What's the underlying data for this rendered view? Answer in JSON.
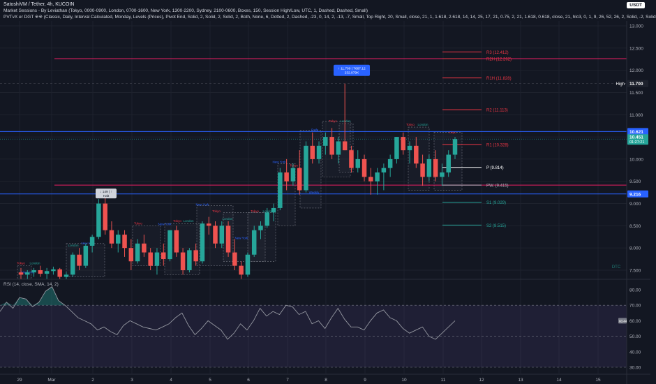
{
  "header": {
    "symbol_line": "SatoshiVM / Tether, 4h, KUCOIN",
    "indicator1": "Market Sessions - By Leviathan (Tokyo, 0000-0900, London, 0700-1600, New York, 1300-2200, Sydney, 2100-0600, Boxes, 150, Session High/Low, UTC, 1, Dashed, Dashed, Small)",
    "indicator2": "PVTvX er DGT ※※ (Classic, Daily, Interval Calculated, Monday, Levels (Prices), Pivot End, Solid, 2, Solid, 2, Solid, 2, Both, None, 6, Dotted, 2, Dashed, -23, 0, 14, 2, -13, -7, Small, Top Right, 20, Small, close, 21, 1, 1.618, 2.618, 14, 14, 25, 17, 21, 0.75, 2, 21, 1.618, 0.618, close, 21, hlc3, 0, 1, 9, 26, 52, 26, 2, Solid, -2, Solid",
    "currency": "USDT"
  },
  "rsi": {
    "label": "RSI (14, close, SMA, 14, 2)",
    "current": "60.44",
    "axis": [
      "80.00",
      "70.00",
      "60.00",
      "50.00",
      "40.00",
      "30.00"
    ],
    "upper": 70,
    "lower": 30,
    "mid": 50,
    "values": [
      66,
      72,
      68,
      75,
      74,
      69,
      72,
      79,
      82,
      73,
      70,
      66,
      62,
      60,
      58,
      54,
      56,
      53,
      51,
      57,
      60,
      58,
      56,
      55,
      54,
      56,
      58,
      62,
      65,
      57,
      51,
      55,
      60,
      57,
      54,
      48,
      52,
      58,
      54,
      60,
      68,
      63,
      66,
      64,
      70,
      69,
      64,
      66,
      58,
      60,
      55,
      62,
      68,
      61,
      56,
      56,
      54,
      60,
      65,
      67,
      62,
      60,
      55,
      52,
      54,
      56,
      50,
      48,
      52,
      56,
      60
    ]
  },
  "price_axis": {
    "ticks": [
      "13.000",
      "12.500",
      "12.000",
      "11.500",
      "11.000",
      "10.500",
      "10.000",
      "9.500",
      "9.000",
      "8.500",
      "8.000",
      "7.500"
    ],
    "high_label": "High",
    "high_value": "11.700",
    "level_10_621": "10.621",
    "current_price": "10.451",
    "countdown": "01:27:21",
    "level_9_216": "9.216"
  },
  "time_axis": [
    "29",
    "Mar",
    "2",
    "3",
    "4",
    "5",
    "6",
    "7",
    "8",
    "9",
    "10",
    "11",
    "12",
    "13",
    "14",
    "15"
  ],
  "pivots": [
    {
      "label": "R3 (12.412)",
      "price": 12.412,
      "color": "#f23645"
    },
    {
      "label": "R2H (12.262)",
      "price": 12.262,
      "color": "#f23645"
    },
    {
      "label": "R1H (11.828)",
      "price": 11.828,
      "color": "#f23645"
    },
    {
      "label": "R2 (11.113)",
      "price": 11.113,
      "color": "#f23645"
    },
    {
      "label": "R1 (10.328)",
      "price": 10.328,
      "color": "#f23645"
    },
    {
      "label": "P (9.814)",
      "price": 9.814,
      "color": "#ffffff"
    },
    {
      "label": "PW. (9.415)",
      "price": 9.415,
      "color": "#b2b5be"
    },
    {
      "label": "S1 (9.029)",
      "price": 9.029,
      "color": "#26a69a"
    },
    {
      "label": "S2 (8.515)",
      "price": 8.515,
      "color": "#26a69a"
    }
  ],
  "annotations": {
    "high_callout_line1": "↑ 11.700 | 7667.12",
    "high_callout_line2": "232.979K",
    "low_callout_line1": "↓ 149 | ↑",
    "low_callout_line2": "Halt",
    "watermark": "DTC",
    "session_labels": [
      {
        "text": "Tokyo",
        "color": "#f23645",
        "price": 7.6,
        "cx": 30
      },
      {
        "text": "London",
        "color": "#26a69a",
        "price": 7.6,
        "cx": 50
      },
      {
        "text": "New York",
        "color": "#2962ff",
        "price": 7.4,
        "cx": 40
      },
      {
        "text": "London",
        "color": "#26a69a",
        "price": 8.0,
        "cx": 105
      },
      {
        "text": "New York",
        "color": "#2962ff",
        "price": 8.05,
        "cx": 126
      },
      {
        "text": "Tokyo",
        "color": "#f23645",
        "price": 8.5,
        "cx": 198
      },
      {
        "text": "Tokyo",
        "color": "#f23645",
        "price": 8.55,
        "cx": 254
      },
      {
        "text": "New York",
        "color": "#2962ff",
        "price": 8.48,
        "cx": 236
      },
      {
        "text": "London",
        "color": "#26a69a",
        "price": 8.55,
        "cx": 270
      },
      {
        "text": "New York",
        "color": "#2962ff",
        "price": 8.92,
        "cx": 290
      },
      {
        "text": "Tokyo",
        "color": "#f23645",
        "price": 8.77,
        "cx": 310
      },
      {
        "text": "London",
        "color": "#26a69a",
        "price": 8.6,
        "cx": 326
      },
      {
        "text": "Tokyo",
        "color": "#f23645",
        "price": 8.77,
        "cx": 365
      },
      {
        "text": "London",
        "color": "#26a69a",
        "price": 8.77,
        "cx": 384
      },
      {
        "text": "New York",
        "color": "#2962ff",
        "price": 8.17,
        "cx": 346
      },
      {
        "text": "Tokyo",
        "color": "#f23645",
        "price": 9.8,
        "cx": 421
      },
      {
        "text": "Daily",
        "color": "#2962ff",
        "price": 10.6,
        "cx": 451
      },
      {
        "text": "Tokyo",
        "color": "#f23645",
        "price": 10.8,
        "cx": 477
      },
      {
        "text": "London",
        "color": "#26a69a",
        "price": 10.8,
        "cx": 495
      },
      {
        "text": "Weekly",
        "color": "#2962ff",
        "price": 9.2,
        "cx": 450
      },
      {
        "text": "New York",
        "color": "#2962ff",
        "price": 9.88,
        "cx": 400
      },
      {
        "text": "Tokyo",
        "color": "#f23645",
        "price": 10.72,
        "cx": 588
      },
      {
        "text": "London",
        "color": "#26a69a",
        "price": 10.72,
        "cx": 606
      },
      {
        "text": "Tokyo",
        "color": "#f23645",
        "price": 10.55,
        "cx": 648
      }
    ]
  },
  "colors": {
    "bg": "#131722",
    "up": "#26a69a",
    "down": "#ef5350",
    "blue_line": "#2962ff",
    "pink_line": "#e91e63",
    "rsi_line": "#9598a1"
  },
  "chart_data": {
    "type": "candlestick",
    "symbol": "SatoshiVM / Tether",
    "timeframe": "4h",
    "exchange": "KUCOIN",
    "ylim": [
      7.3,
      13.2
    ],
    "horizontal_lines": [
      12.262,
      10.621,
      9.415,
      9.216,
      11.7
    ],
    "ohlc": [
      [
        7.45,
        7.55,
        7.3,
        7.4
      ],
      [
        7.4,
        7.5,
        7.3,
        7.45
      ],
      [
        7.45,
        7.55,
        7.35,
        7.5
      ],
      [
        7.5,
        7.6,
        7.35,
        7.42
      ],
      [
        7.42,
        7.55,
        7.3,
        7.48
      ],
      [
        7.48,
        7.58,
        7.4,
        7.52
      ],
      [
        7.52,
        7.55,
        7.3,
        7.35
      ],
      [
        7.35,
        7.45,
        7.3,
        7.4
      ],
      [
        7.4,
        7.9,
        7.35,
        7.85
      ],
      [
        7.85,
        8.0,
        7.5,
        7.6
      ],
      [
        7.6,
        8.1,
        7.55,
        8.05
      ],
      [
        8.05,
        8.3,
        7.9,
        8.25
      ],
      [
        8.25,
        9.1,
        8.2,
        9.0
      ],
      [
        9.0,
        9.15,
        8.3,
        8.4
      ],
      [
        8.4,
        8.6,
        8.0,
        8.1
      ],
      [
        8.1,
        8.4,
        7.9,
        8.3
      ],
      [
        8.3,
        8.4,
        7.8,
        8.0
      ],
      [
        8.0,
        8.2,
        7.5,
        7.7
      ],
      [
        7.7,
        8.2,
        7.65,
        8.1
      ],
      [
        8.1,
        8.3,
        7.8,
        7.9
      ],
      [
        7.9,
        8.0,
        7.5,
        7.6
      ],
      [
        7.6,
        8.0,
        7.4,
        7.9
      ],
      [
        7.9,
        8.1,
        7.6,
        7.75
      ],
      [
        7.75,
        8.4,
        7.7,
        8.4
      ],
      [
        8.4,
        8.5,
        7.8,
        7.9
      ],
      [
        7.9,
        8.0,
        7.4,
        7.5
      ],
      [
        7.5,
        8.0,
        7.45,
        7.95
      ],
      [
        7.95,
        8.1,
        7.6,
        7.7
      ],
      [
        7.7,
        8.6,
        7.65,
        8.55
      ],
      [
        8.55,
        8.7,
        8.3,
        8.5
      ],
      [
        8.5,
        8.6,
        8.0,
        8.1
      ],
      [
        8.1,
        8.6,
        8.0,
        8.5
      ],
      [
        8.5,
        8.6,
        7.8,
        7.9
      ],
      [
        7.9,
        8.2,
        7.5,
        7.6
      ],
      [
        7.6,
        7.7,
        7.3,
        7.4
      ],
      [
        7.4,
        7.9,
        7.35,
        7.85
      ],
      [
        7.85,
        8.5,
        7.8,
        8.4
      ],
      [
        8.4,
        8.6,
        8.2,
        8.5
      ],
      [
        8.5,
        8.9,
        8.45,
        8.8
      ],
      [
        8.8,
        9.0,
        8.6,
        8.9
      ],
      [
        8.9,
        9.8,
        8.85,
        9.7
      ],
      [
        9.7,
        10.0,
        9.3,
        9.5
      ],
      [
        9.5,
        9.9,
        9.4,
        9.8
      ],
      [
        9.8,
        10.2,
        9.2,
        9.3
      ],
      [
        9.3,
        10.4,
        9.25,
        10.3
      ],
      [
        10.3,
        10.6,
        9.9,
        10.0
      ],
      [
        10.0,
        10.4,
        9.9,
        10.3
      ],
      [
        10.3,
        10.6,
        10.1,
        10.5
      ],
      [
        10.5,
        10.7,
        10.0,
        10.1
      ],
      [
        10.1,
        10.5,
        9.9,
        10.4
      ],
      [
        10.4,
        11.7,
        10.2,
        10.2
      ],
      [
        10.2,
        10.3,
        9.7,
        9.8
      ],
      [
        9.8,
        10.2,
        9.7,
        10.0
      ],
      [
        10.0,
        10.1,
        9.5,
        9.6
      ],
      [
        9.6,
        9.8,
        9.2,
        9.5
      ],
      [
        9.5,
        9.8,
        9.2,
        9.7
      ],
      [
        9.7,
        9.9,
        9.3,
        9.8
      ],
      [
        9.8,
        10.1,
        9.6,
        10.0
      ],
      [
        10.0,
        10.5,
        9.9,
        10.5
      ],
      [
        10.5,
        10.6,
        10.1,
        10.2
      ],
      [
        10.2,
        10.4,
        9.9,
        10.3
      ],
      [
        10.3,
        10.5,
        9.8,
        9.9
      ],
      [
        9.9,
        10.1,
        9.4,
        9.6
      ],
      [
        9.6,
        10.1,
        9.5,
        10.0
      ],
      [
        10.0,
        10.2,
        9.5,
        9.6
      ],
      [
        9.6,
        9.9,
        9.4,
        9.7
      ],
      [
        9.7,
        10.2,
        9.6,
        10.1
      ],
      [
        10.1,
        10.5,
        10.0,
        10.451
      ]
    ]
  }
}
